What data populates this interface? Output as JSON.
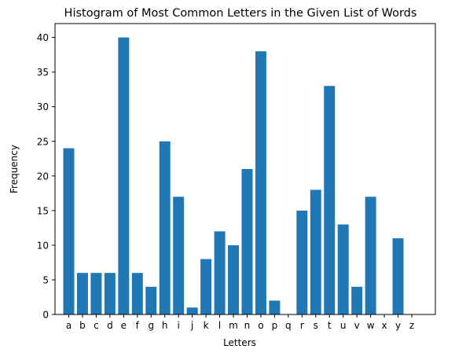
{
  "chart_data": {
    "type": "bar",
    "title": "Histogram of Most Common Letters in the Given List of Words",
    "xlabel": "Letters",
    "ylabel": "Frequency",
    "categories": [
      "a",
      "b",
      "c",
      "d",
      "e",
      "f",
      "g",
      "h",
      "i",
      "j",
      "k",
      "l",
      "m",
      "n",
      "o",
      "p",
      "q",
      "r",
      "s",
      "t",
      "u",
      "v",
      "w",
      "x",
      "y",
      "z"
    ],
    "values": [
      24,
      6,
      6,
      6,
      40,
      6,
      4,
      25,
      17,
      1,
      8,
      12,
      10,
      21,
      38,
      2,
      0,
      15,
      18,
      33,
      13,
      4,
      17,
      0,
      11,
      0
    ],
    "ylim": [
      0,
      42
    ],
    "yticks": [
      0,
      5,
      10,
      15,
      20,
      25,
      30,
      35,
      40
    ],
    "bar_color": "#1f77b4",
    "grid": false,
    "legend": "none"
  }
}
